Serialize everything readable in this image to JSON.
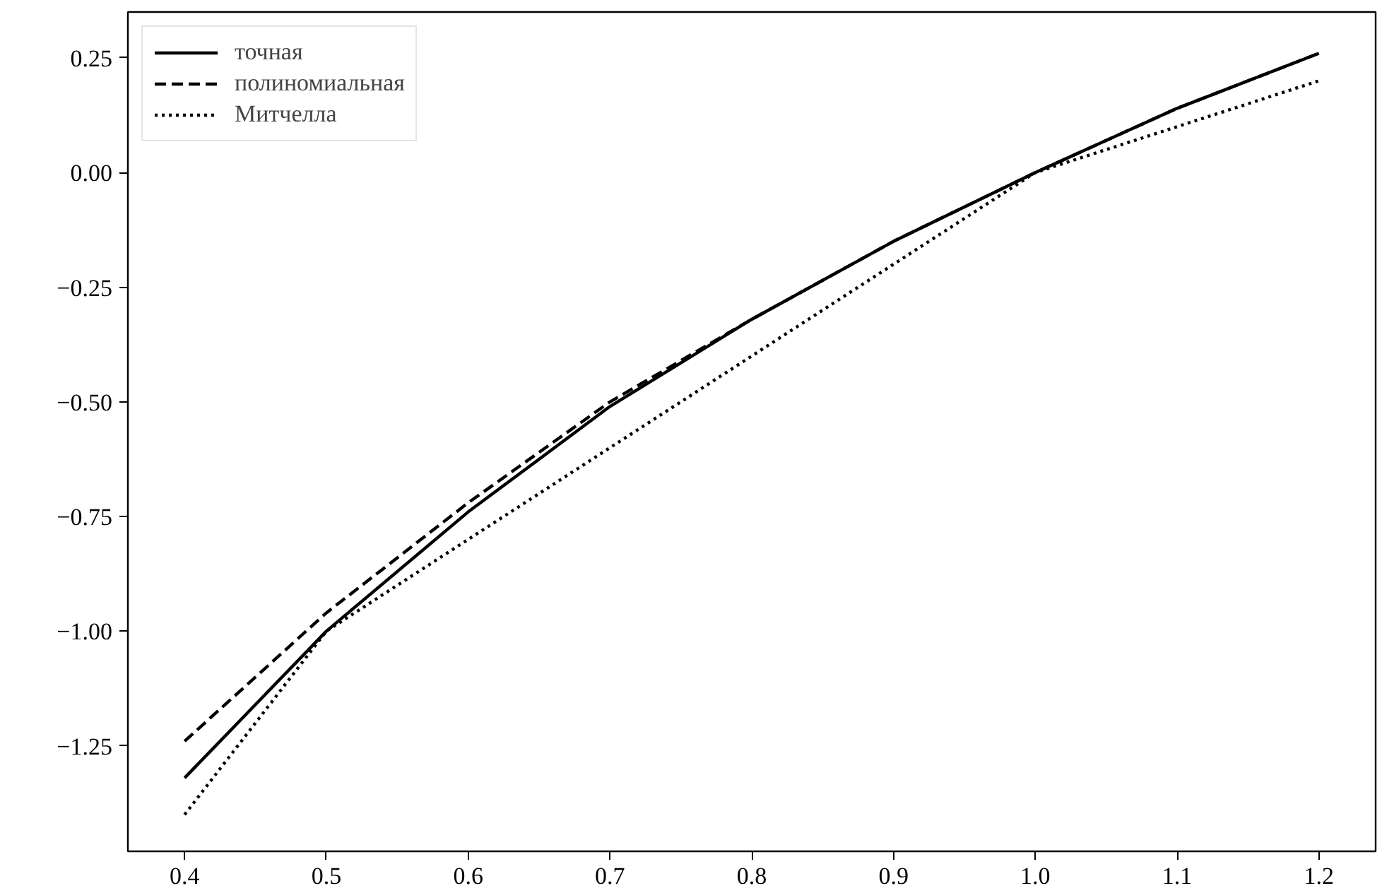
{
  "chart_data": {
    "type": "line",
    "x": [
      0.4,
      0.5,
      0.6,
      0.7,
      0.8,
      0.9,
      1.0,
      1.1,
      1.2
    ],
    "series": [
      {
        "name": "точная",
        "color": "#000000",
        "line_style": "solid",
        "values": [
          -1.32,
          -1.0,
          -0.74,
          -0.51,
          -0.32,
          -0.15,
          0.0,
          0.14,
          0.26
        ]
      },
      {
        "name": "полиномиальная",
        "color": "#000000",
        "line_style": "dashed",
        "values": [
          -1.24,
          -0.96,
          -0.72,
          -0.5,
          -0.32,
          -0.15,
          0.0,
          0.14,
          0.26
        ]
      },
      {
        "name": "Митчелла",
        "color": "#000000",
        "line_style": "dotted",
        "values": [
          -1.4,
          -1.0,
          -0.8,
          -0.6,
          -0.4,
          -0.2,
          0.0,
          0.1,
          0.2
        ]
      }
    ],
    "xlim": [
      0.36,
      1.24
    ],
    "ylim": [
      -1.48,
      0.35
    ],
    "xticks": [
      0.4,
      0.5,
      0.6,
      0.7,
      0.8,
      0.9,
      {
        "value": 1.0,
        "label": "1.0"
      },
      1.1,
      1.2
    ],
    "yticks": [
      {
        "value": -1.25,
        "label": "−1.25"
      },
      {
        "value": -1.0,
        "label": "−1.00"
      },
      {
        "value": -0.75,
        "label": "−0.75"
      },
      {
        "value": -0.5,
        "label": "−0.50"
      },
      {
        "value": -0.25,
        "label": "−0.25"
      },
      {
        "value": 0,
        "label": "0.00"
      },
      {
        "value": 0.25,
        "label": "0.25"
      }
    ],
    "legend": "top left",
    "grid": false,
    "marker": "none"
  }
}
